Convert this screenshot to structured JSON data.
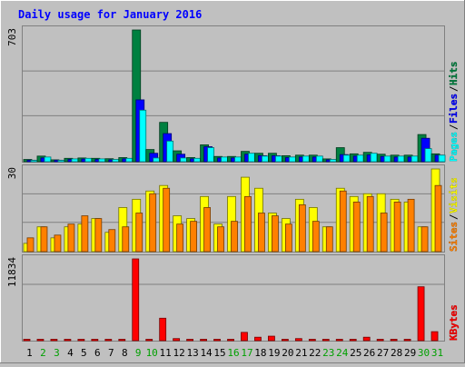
{
  "chart_data": [
    {
      "type": "bar",
      "title": "Daily usage for January 2016",
      "ymax_label": "703",
      "ylim": [
        0,
        703
      ],
      "categories": [
        "1",
        "2",
        "3",
        "4",
        "5",
        "6",
        "7",
        "8",
        "9",
        "10",
        "11",
        "12",
        "13",
        "14",
        "15",
        "16",
        "17",
        "18",
        "19",
        "20",
        "21",
        "22",
        "23",
        "24",
        "25",
        "26",
        "27",
        "28",
        "29",
        "30",
        "31"
      ],
      "weekend_days": [
        "2",
        "3",
        "9",
        "10",
        "16",
        "17",
        "23",
        "24",
        "30",
        "31"
      ],
      "series": [
        {
          "name": "Hits",
          "color": "#008040",
          "values": [
            12,
            30,
            10,
            18,
            20,
            18,
            16,
            22,
            703,
            65,
            210,
            58,
            22,
            90,
            28,
            28,
            55,
            45,
            45,
            32,
            35,
            35,
            15,
            75,
            42,
            50,
            40,
            35,
            35,
            145,
            42
          ]
        },
        {
          "name": "Files",
          "color": "#0000ff",
          "values": [
            8,
            20,
            8,
            12,
            14,
            12,
            10,
            15,
            330,
            45,
            150,
            40,
            15,
            80,
            20,
            20,
            40,
            32,
            32,
            22,
            25,
            25,
            10,
            38,
            30,
            36,
            28,
            25,
            25,
            125,
            35
          ]
        },
        {
          "name": "Pages",
          "color": "#00ffff",
          "values": [
            5,
            25,
            5,
            15,
            18,
            15,
            12,
            18,
            275,
            20,
            110,
            20,
            18,
            75,
            25,
            25,
            45,
            30,
            30,
            25,
            30,
            30,
            12,
            35,
            35,
            45,
            30,
            30,
            30,
            70,
            35
          ]
        }
      ],
      "series_labels_order": [
        "Pages",
        "Files",
        "Hits"
      ]
    },
    {
      "type": "bar",
      "ymax_label": "30",
      "ylim": [
        0,
        30
      ],
      "categories": [
        "1",
        "2",
        "3",
        "4",
        "5",
        "6",
        "7",
        "8",
        "9",
        "10",
        "11",
        "12",
        "13",
        "14",
        "15",
        "16",
        "17",
        "18",
        "19",
        "20",
        "21",
        "22",
        "23",
        "24",
        "25",
        "26",
        "27",
        "28",
        "29",
        "30",
        "31"
      ],
      "series": [
        {
          "name": "Visits",
          "color": "#ffff00",
          "values": [
            3,
            9,
            5,
            9,
            10,
            12,
            7,
            16,
            19,
            22,
            24,
            13,
            12,
            20,
            10,
            20,
            27,
            23,
            14,
            12,
            19,
            16,
            9,
            23,
            20,
            21,
            21,
            19,
            18,
            9,
            30
          ]
        },
        {
          "name": "Sites",
          "color": "#ff8000",
          "values": [
            5,
            9,
            6,
            10,
            13,
            12,
            8,
            9,
            14,
            21,
            23,
            10,
            11,
            16,
            9,
            11,
            20,
            14,
            13,
            10,
            17,
            11,
            9,
            22,
            18,
            20,
            14,
            18,
            19,
            9,
            24
          ]
        }
      ],
      "series_labels_order": [
        "Sites",
        "Visits"
      ]
    },
    {
      "type": "bar",
      "ymax_label": "11834",
      "ylim": [
        0,
        11834
      ],
      "categories": [
        "1",
        "2",
        "3",
        "4",
        "5",
        "6",
        "7",
        "8",
        "9",
        "10",
        "11",
        "12",
        "13",
        "14",
        "15",
        "16",
        "17",
        "18",
        "19",
        "20",
        "21",
        "22",
        "23",
        "24",
        "25",
        "26",
        "27",
        "28",
        "29",
        "30",
        "31"
      ],
      "series": [
        {
          "name": "KBytes",
          "color": "#ff0000",
          "values": [
            0,
            0,
            0,
            0,
            0,
            0,
            0,
            0,
            11834,
            0,
            3250,
            300,
            0,
            0,
            0,
            0,
            1200,
            500,
            650,
            0,
            300,
            0,
            0,
            0,
            0,
            500,
            0,
            0,
            0,
            7800,
            1300
          ]
        }
      ],
      "series_labels_order": [
        "KBytes"
      ]
    }
  ],
  "colors": {
    "background": "#c0c0c0",
    "title": "#0000ff",
    "weekday_label": "#000000",
    "weekend_label": "#00a000",
    "separator_slash": "#000000"
  }
}
